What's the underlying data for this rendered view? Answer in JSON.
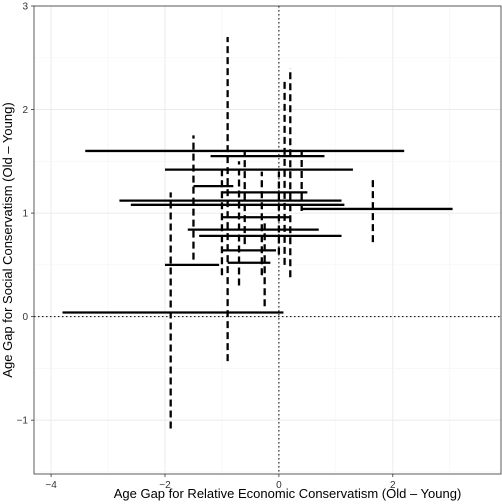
{
  "chart_data": {
    "type": "errorbar-scatter",
    "xlabel": "Age Gap for Relative Economic Conservatism (Old – Young)",
    "ylabel": "Age Gap for Social Conservatism (Old – Young)",
    "xlim": [
      -4.3,
      3.9
    ],
    "ylim": [
      -1.52,
      3.0
    ],
    "x_ticks": [
      -4,
      -2,
      0,
      2
    ],
    "y_ticks": [
      -1,
      0,
      1,
      2,
      3
    ],
    "reference_lines": {
      "x": 0,
      "y": 0,
      "style": "dotted"
    },
    "grid": true,
    "points": [
      {
        "x": -1.55,
        "y": 0.04,
        "x_low": -3.8,
        "x_high": 0.08,
        "y_low": 0.0,
        "y_high": 0.08
      },
      {
        "x": -0.5,
        "y": 1.6,
        "x_low": -3.4,
        "x_high": 2.2,
        "y_low": 1.52,
        "y_high": 1.68
      },
      {
        "x": -1.9,
        "y": 0.8,
        "x_low": -1.9,
        "x_high": -1.9,
        "y_low": -1.08,
        "y_high": 1.2
      },
      {
        "x": -0.9,
        "y": 1.22,
        "x_low": -0.9,
        "x_high": -0.9,
        "y_low": -0.43,
        "y_high": 2.7
      },
      {
        "x": 0.2,
        "y": 1.3,
        "x_low": 0.2,
        "x_high": 0.2,
        "y_low": 0.38,
        "y_high": 2.4
      },
      {
        "x": 0.1,
        "y": 1.4,
        "x_low": 0.1,
        "x_high": 0.1,
        "y_low": 0.5,
        "y_high": 2.3
      },
      {
        "x": -1.5,
        "y": 1.0,
        "x_low": -1.5,
        "x_high": -1.5,
        "y_low": 0.55,
        "y_high": 1.75
      },
      {
        "x": 1.65,
        "y": 1.0,
        "x_low": 1.65,
        "x_high": 1.65,
        "y_low": 0.72,
        "y_high": 1.35
      },
      {
        "x": 0.4,
        "y": 1.4,
        "x_low": 0.4,
        "x_high": 0.4,
        "y_low": 1.02,
        "y_high": 1.6
      },
      {
        "x": 1.1,
        "y": 1.04,
        "x_low": 0.4,
        "x_high": 3.05,
        "y_low": 1.0,
        "y_high": 1.08
      },
      {
        "x": -0.6,
        "y": 1.42,
        "x_low": -2.0,
        "x_high": 1.3,
        "y_low": 1.38,
        "y_high": 1.46
      },
      {
        "x": -0.5,
        "y": 1.12,
        "x_low": -2.8,
        "x_high": 1.1,
        "y_low": 1.08,
        "y_high": 1.16
      },
      {
        "x": -0.6,
        "y": 1.08,
        "x_low": -2.6,
        "x_high": 1.15,
        "y_low": 1.04,
        "y_high": 1.12
      },
      {
        "x": -0.3,
        "y": 0.84,
        "x_low": -1.6,
        "x_high": 0.7,
        "y_low": 0.8,
        "y_high": 0.88
      },
      {
        "x": -0.4,
        "y": 0.78,
        "x_low": -1.4,
        "x_high": 1.1,
        "y_low": 0.74,
        "y_high": 0.82
      },
      {
        "x": -1.6,
        "y": 0.5,
        "x_low": -2.0,
        "x_high": -1.05,
        "y_low": 0.46,
        "y_high": 0.54
      },
      {
        "x": -0.5,
        "y": 0.52,
        "x_low": -0.9,
        "x_high": -0.15,
        "y_low": 0.48,
        "y_high": 0.56
      },
      {
        "x": -1.1,
        "y": 1.26,
        "x_low": -1.5,
        "x_high": -0.8,
        "y_low": 1.22,
        "y_high": 1.3
      },
      {
        "x": -0.3,
        "y": 1.2,
        "x_low": -1.0,
        "x_high": 0.5,
        "y_low": 1.16,
        "y_high": 1.24
      },
      {
        "x": -0.5,
        "y": 0.96,
        "x_low": -1.0,
        "x_high": 0.2,
        "y_low": 0.92,
        "y_high": 0.98
      },
      {
        "x": -0.5,
        "y": 0.64,
        "x_low": -1.0,
        "x_high": -0.05,
        "y_low": 0.6,
        "y_high": 0.68
      },
      {
        "x": -0.2,
        "y": 1.55,
        "x_low": -1.2,
        "x_high": 0.8,
        "y_low": 1.51,
        "y_high": 1.59
      },
      {
        "x": 0.0,
        "y": 1.0,
        "x_low": 0.0,
        "x_high": 0.0,
        "y_low": 0.6,
        "y_high": 1.4
      },
      {
        "x": -0.6,
        "y": 1.2,
        "x_low": -0.6,
        "x_high": -0.6,
        "y_low": 0.7,
        "y_high": 1.6
      },
      {
        "x": -0.3,
        "y": 1.0,
        "x_low": -0.3,
        "x_high": -0.3,
        "y_low": 0.4,
        "y_high": 1.4
      },
      {
        "x": -0.7,
        "y": 0.95,
        "x_low": -0.7,
        "x_high": -0.7,
        "y_low": 0.3,
        "y_high": 1.5
      },
      {
        "x": -1.0,
        "y": 1.0,
        "x_low": -1.0,
        "x_high": -1.0,
        "y_low": 0.4,
        "y_high": 1.45
      },
      {
        "x": -0.25,
        "y": 0.5,
        "x_low": -0.25,
        "x_high": -0.25,
        "y_low": 0.1,
        "y_high": 0.9
      }
    ]
  }
}
